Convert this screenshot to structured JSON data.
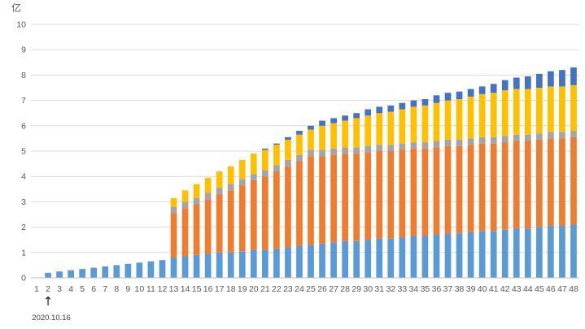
{
  "chart_data": {
    "type": "bar",
    "stacked": true,
    "unit_label": "亿",
    "ylim": [
      0,
      10
    ],
    "y_ticks": [
      0,
      1,
      2,
      3,
      4,
      5,
      6,
      7,
      8,
      9,
      10
    ],
    "grid": "horizontal",
    "legend": "none",
    "categories": [
      "1",
      "2",
      "3",
      "4",
      "5",
      "6",
      "7",
      "8",
      "9",
      "10",
      "11",
      "12",
      "13",
      "14",
      "15",
      "16",
      "17",
      "18",
      "19",
      "20",
      "21",
      "22",
      "23",
      "24",
      "25",
      "26",
      "27",
      "28",
      "29",
      "30",
      "31",
      "32",
      "33",
      "34",
      "35",
      "36",
      "37",
      "38",
      "39",
      "40",
      "41",
      "42",
      "43",
      "44",
      "45",
      "46",
      "47",
      "48"
    ],
    "series": [
      {
        "color": "#5b9bd5",
        "values": [
          0,
          0.2,
          0.25,
          0.3,
          0.35,
          0.4,
          0.45,
          0.5,
          0.55,
          0.6,
          0.65,
          0.7,
          0.8,
          0.85,
          0.9,
          0.95,
          1.0,
          1.0,
          1.05,
          1.1,
          1.1,
          1.15,
          1.2,
          1.25,
          1.3,
          1.35,
          1.4,
          1.45,
          1.45,
          1.5,
          1.55,
          1.55,
          1.6,
          1.65,
          1.65,
          1.7,
          1.75,
          1.75,
          1.8,
          1.85,
          1.85,
          1.9,
          1.95,
          1.95,
          2.0,
          2.05,
          2.05,
          2.1
        ]
      },
      {
        "color": "#ed7d31",
        "values": [
          0,
          0,
          0,
          0,
          0,
          0,
          0,
          0,
          0,
          0,
          0,
          0,
          1.75,
          1.9,
          2.0,
          2.15,
          2.3,
          2.45,
          2.6,
          2.75,
          2.9,
          3.05,
          3.2,
          3.35,
          3.5,
          3.45,
          3.45,
          3.45,
          3.45,
          3.45,
          3.45,
          3.45,
          3.45,
          3.45,
          3.45,
          3.45,
          3.45,
          3.45,
          3.45,
          3.45,
          3.45,
          3.45,
          3.45,
          3.45,
          3.45,
          3.45,
          3.45,
          3.45
        ]
      },
      {
        "color": "#a5a5a5",
        "values": [
          0,
          0,
          0,
          0,
          0,
          0,
          0,
          0,
          0,
          0,
          0,
          0,
          0.25,
          0.25,
          0.25,
          0.25,
          0.25,
          0.25,
          0.25,
          0.25,
          0.25,
          0.25,
          0.25,
          0.25,
          0.25,
          0.25,
          0.25,
          0.25,
          0.25,
          0.25,
          0.25,
          0.25,
          0.25,
          0.25,
          0.25,
          0.25,
          0.25,
          0.25,
          0.25,
          0.25,
          0.25,
          0.25,
          0.25,
          0.25,
          0.25,
          0.25,
          0.25,
          0.25
        ]
      },
      {
        "color": "#ffc000",
        "values": [
          0,
          0,
          0,
          0,
          0,
          0,
          0,
          0,
          0,
          0,
          0,
          0,
          0.35,
          0.45,
          0.55,
          0.6,
          0.65,
          0.7,
          0.75,
          0.8,
          0.8,
          0.8,
          0.8,
          0.8,
          0.8,
          0.95,
          1.0,
          1.05,
          1.15,
          1.2,
          1.25,
          1.3,
          1.35,
          1.4,
          1.45,
          1.5,
          1.55,
          1.6,
          1.65,
          1.7,
          1.75,
          1.8,
          1.8,
          1.8,
          1.8,
          1.8,
          1.8,
          1.8
        ]
      },
      {
        "color": "#4472c4",
        "values": [
          0,
          0,
          0,
          0,
          0,
          0,
          0,
          0,
          0,
          0,
          0,
          0,
          0,
          0,
          0,
          0,
          0,
          0,
          0,
          0,
          0.05,
          0.05,
          0.1,
          0.15,
          0.15,
          0.2,
          0.2,
          0.2,
          0.2,
          0.25,
          0.25,
          0.25,
          0.25,
          0.25,
          0.25,
          0.3,
          0.3,
          0.3,
          0.3,
          0.3,
          0.35,
          0.4,
          0.45,
          0.5,
          0.55,
          0.6,
          0.65,
          0.7
        ]
      }
    ],
    "annotation": {
      "category": "2",
      "symbol": "↑",
      "text": "2020.10.16"
    }
  }
}
